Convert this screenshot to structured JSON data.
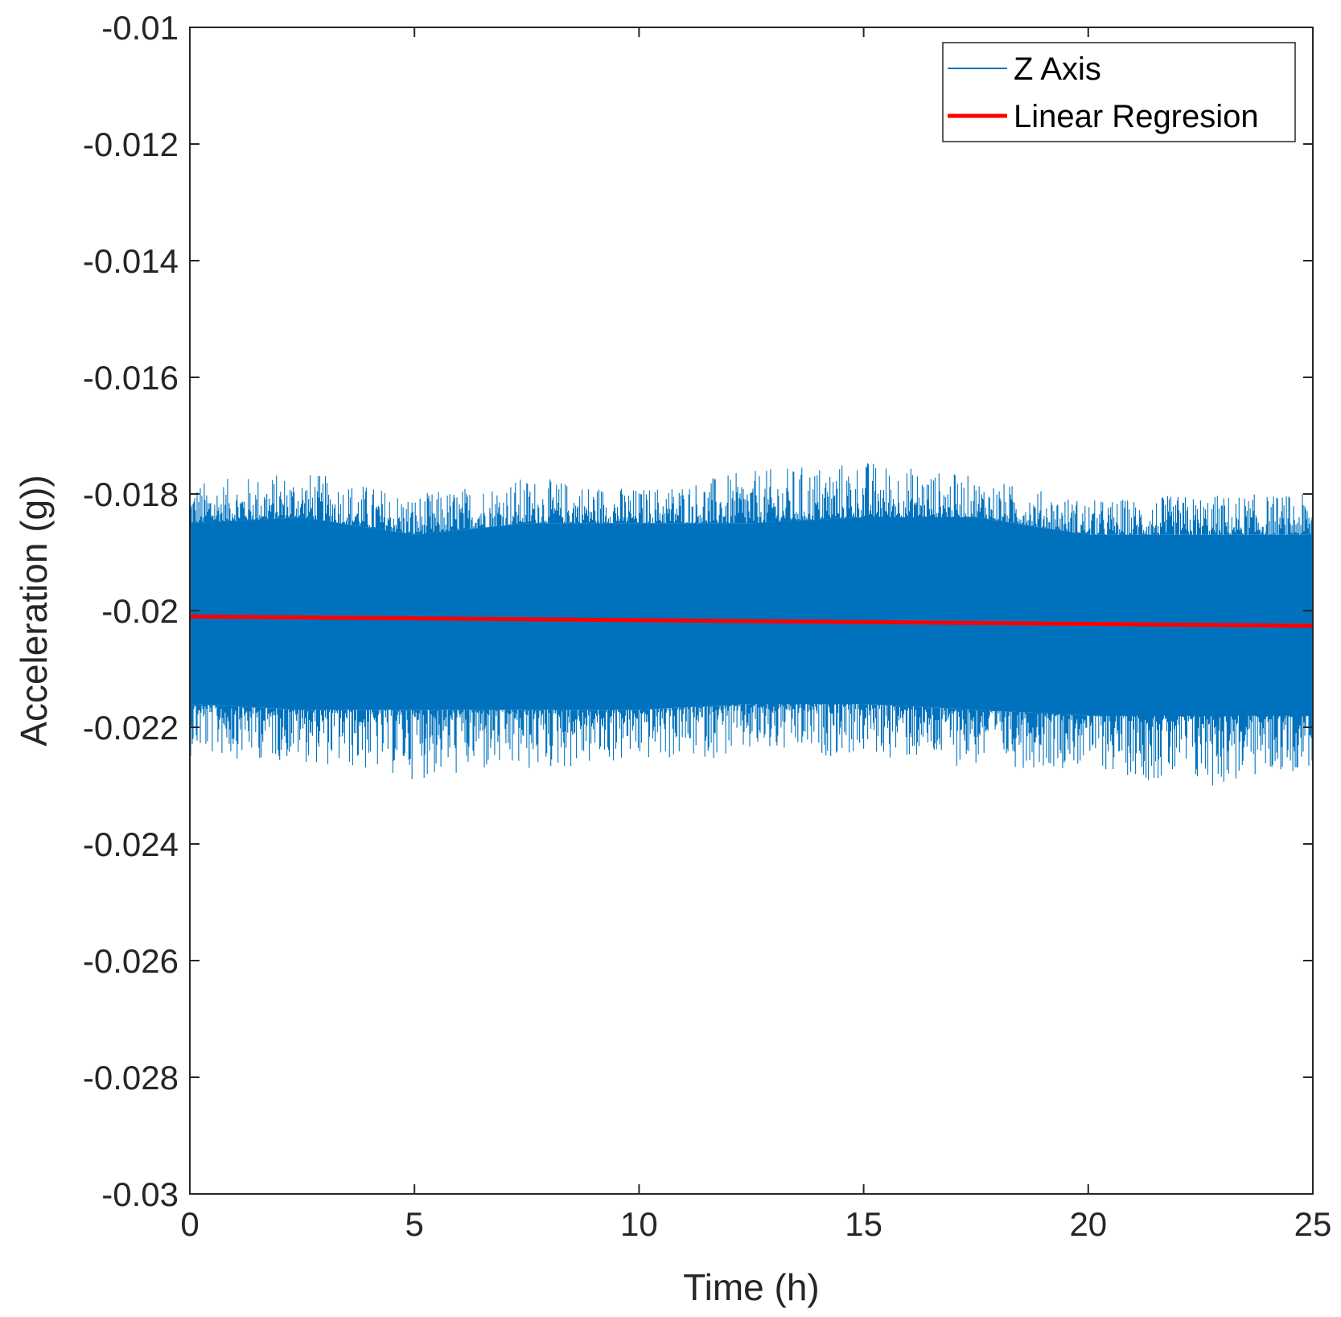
{
  "chart_data": {
    "type": "line",
    "xlabel": "Time (h)",
    "ylabel": "Acceleration (g))",
    "xlim": [
      0,
      25
    ],
    "ylim": [
      -0.03,
      -0.01
    ],
    "xticks": [
      0,
      5,
      10,
      15,
      20,
      25
    ],
    "xtick_labels": [
      "0",
      "5",
      "10",
      "15",
      "20",
      "25"
    ],
    "yticks": [
      -0.01,
      -0.012,
      -0.014,
      -0.016,
      -0.018,
      -0.02,
      -0.022,
      -0.024,
      -0.026,
      -0.028,
      -0.03
    ],
    "ytick_labels": [
      "-0.01",
      "-0.012",
      "-0.014",
      "-0.016",
      "-0.018",
      "-0.02",
      "-0.022",
      "-0.024",
      "-0.026",
      "-0.028",
      "-0.03"
    ],
    "grid": false,
    "legend_position": "top-right",
    "series": [
      {
        "name": "Z Axis",
        "color": "#0072BD",
        "style": "noise-band",
        "x": [
          0,
          2.5,
          5,
          7.5,
          10,
          12.5,
          15,
          17.5,
          20,
          22.5,
          25
        ],
        "upper_envelope": [
          -0.0185,
          -0.0184,
          -0.0187,
          -0.0185,
          -0.0185,
          -0.0185,
          -0.0184,
          -0.0184,
          -0.0187,
          -0.0187,
          -0.0187
        ],
        "lower_envelope": [
          -0.0216,
          -0.0217,
          -0.0217,
          -0.0217,
          -0.0217,
          -0.0216,
          -0.0216,
          -0.0217,
          -0.0218,
          -0.0218,
          -0.0218
        ],
        "upper_extremes": [
          -0.0178,
          -0.0176,
          -0.018,
          -0.0177,
          -0.0179,
          -0.0176,
          -0.0174,
          -0.0177,
          -0.0181,
          -0.018,
          -0.018
        ],
        "lower_extremes": [
          -0.0225,
          -0.0226,
          -0.0229,
          -0.0228,
          -0.0226,
          -0.0225,
          -0.0225,
          -0.0227,
          -0.0227,
          -0.0231,
          -0.0227
        ]
      },
      {
        "name": "Linear Regresion",
        "color": "#FF0000",
        "style": "line",
        "x": [
          0,
          25
        ],
        "y": [
          -0.0201,
          -0.02026
        ]
      }
    ]
  }
}
